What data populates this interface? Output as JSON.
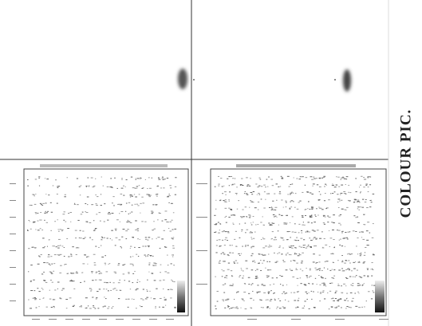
{
  "side_label": "COLOUR PIC."
}
